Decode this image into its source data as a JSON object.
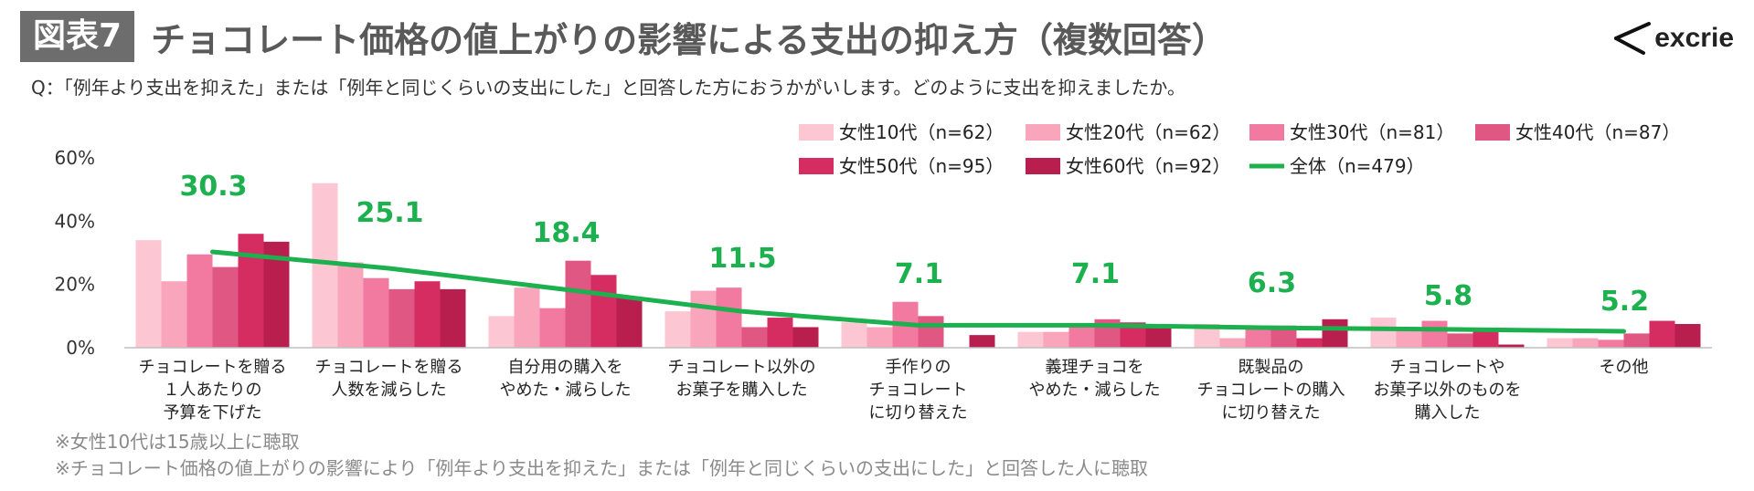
{
  "figure_label": "図表7",
  "title": "チョコレート価格の値上がりの影響による支出の抑え方（複数回答）",
  "logo_text": "excrie",
  "question": "Q：「例年より支出を抑えた」または「例年と同じくらいの支出にした」と回答した方におうかがいします。どのように支出を抑えましたか。",
  "notes": [
    "※女性10代は15歳以上に聴取",
    "※チョコレート価格の値上がりの影響により「例年より支出を抑えた」または「例年と同じくらいの支出にした」と回答した人に聴取"
  ],
  "chart_data": {
    "type": "bar",
    "ylim": [
      0,
      60
    ],
    "yticks": [
      0,
      20,
      40,
      60
    ],
    "ytick_labels": [
      "0%",
      "20%",
      "40%",
      "60%"
    ],
    "categories": [
      [
        "チョコレートを贈る",
        "１人あたりの",
        "予算を下げた"
      ],
      [
        "チョコレートを贈る",
        "人数を減らした"
      ],
      [
        "自分用の購入を",
        "やめた・減らした"
      ],
      [
        "チョコレート以外の",
        "お菓子を購入した"
      ],
      [
        "手作りの",
        "チョコレート",
        "に切り替えた"
      ],
      [
        "義理チョコを",
        "やめた・減らした"
      ],
      [
        "既製品の",
        "チョコレートの購入",
        "に切り替えた"
      ],
      [
        "チョコレートや",
        "お菓子以外のものを",
        "購入した"
      ],
      [
        "その他"
      ]
    ],
    "series": [
      {
        "name": "女性10代（n=62）",
        "color": "#fcc6d3",
        "values": [
          34,
          52,
          10,
          11.5,
          8,
          5,
          7.5,
          9.5,
          3
        ]
      },
      {
        "name": "女性20代（n=62）",
        "color": "#f9a6bd",
        "values": [
          21,
          27,
          19,
          18,
          6.5,
          5,
          3,
          6,
          3
        ]
      },
      {
        "name": "女性30代（n=81）",
        "color": "#f27aa0",
        "values": [
          29.5,
          22,
          12.5,
          19,
          14.5,
          7,
          7,
          8.5,
          2.5
        ]
      },
      {
        "name": "女性40代（n=87）",
        "color": "#e05783",
        "values": [
          25.5,
          18.5,
          27.5,
          6.5,
          10,
          9,
          7,
          4.5,
          4.5
        ]
      },
      {
        "name": "女性50代（n=95）",
        "color": "#d52c61",
        "values": [
          36,
          21,
          23,
          9.5,
          0,
          8,
          3,
          5.5,
          8.5
        ]
      },
      {
        "name": "女性60代（n=92）",
        "color": "#b81f4f",
        "values": [
          33.5,
          18.5,
          16,
          6.5,
          4,
          7,
          9,
          1,
          7.5
        ]
      }
    ],
    "total": {
      "name": "全体（n=479）",
      "color": "#1cb04f",
      "values": [
        30.3,
        25.1,
        18.4,
        11.5,
        7.1,
        7.1,
        6.3,
        5.8,
        5.2
      ]
    },
    "total_labels": [
      "30.3",
      "25.1",
      "18.4",
      "11.5",
      "7.1",
      "7.1",
      "6.3",
      "5.8",
      "5.2"
    ]
  }
}
